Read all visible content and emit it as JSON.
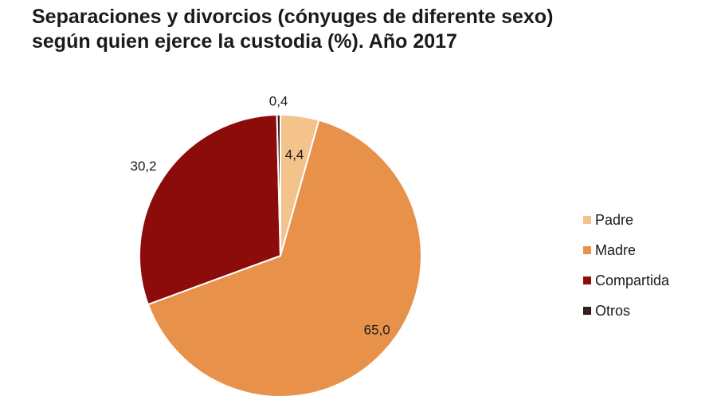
{
  "chart_data": {
    "type": "pie",
    "title_lines": [
      "Separaciones y divorcios (cónyuges de diferente sexo)",
      "según quien ejerce la custodia (%). Año 2017"
    ],
    "categories": [
      "Padre",
      "Madre",
      "Compartida",
      "Otros"
    ],
    "values": [
      4.4,
      65.0,
      30.2,
      0.4
    ],
    "value_labels": [
      "4,4",
      "65,0",
      "30,2",
      "0,4"
    ],
    "colors": [
      "#F4C28B",
      "#E8914A",
      "#8B0C0B",
      "#3D1F1A"
    ],
    "start_angle_deg": 0,
    "direction": "clockwise",
    "legend_position": "right"
  }
}
